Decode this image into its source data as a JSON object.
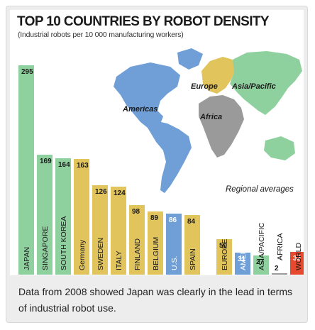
{
  "caption": "Data from 2008 showed Japan was clearly in the lead in terms of industrial robot use.",
  "colors": {
    "asia_pacific": "#8fd19e",
    "europe": "#e2c45d",
    "americas": "#6f9fd6",
    "africa": "#9a9a9a",
    "world": "#e64a2e"
  },
  "map": {
    "labels": {
      "americas": "Americas",
      "europe": "Europe",
      "asia_pacific": "Asia/Pacific",
      "africa": "Africa"
    }
  },
  "chart_data": [
    {
      "type": "bar",
      "title": "TOP 10 COUNTRIES BY ROBOT DENSITY",
      "subtitle": "(Industrial robots per 10 000 manufacturing workers)",
      "data_labels": true,
      "categories": [
        "JAPAN",
        "SINGAPORE",
        "SOUTH KOREA",
        "Germany",
        "SWEDEN",
        "ITALY",
        "FINLAND",
        "BELGIUM",
        "U.S.",
        "SPAIN"
      ],
      "values": [
        295,
        169,
        164,
        163,
        126,
        124,
        98,
        89,
        86,
        84
      ],
      "regions": [
        "asia_pacific",
        "asia_pacific",
        "asia_pacific",
        "europe",
        "europe",
        "europe",
        "europe",
        "europe",
        "americas",
        "europe"
      ],
      "ylim": [
        0,
        300
      ]
    },
    {
      "type": "bar",
      "title": "Regional averages",
      "data_labels": true,
      "categories": [
        "EUROPE",
        "AMERICAS",
        "ASIA/PACIFIC",
        "AFRICA",
        "WORLD"
      ],
      "values": [
        50,
        31,
        27,
        2,
        32
      ],
      "regions": [
        "europe",
        "americas",
        "asia_pacific",
        "africa",
        "world"
      ],
      "ylim": [
        0,
        300
      ]
    }
  ]
}
